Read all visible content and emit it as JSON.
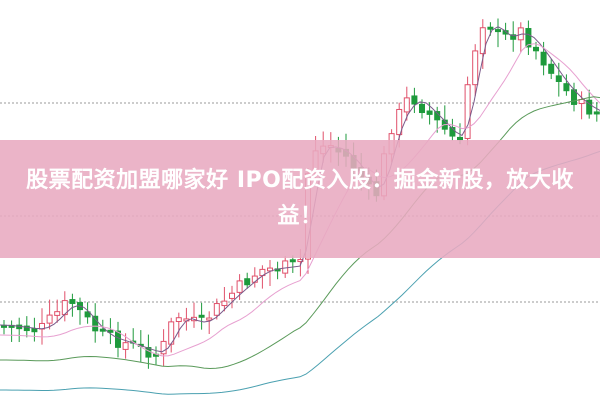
{
  "article": {
    "title": "股票配资加盟哪家好 IPO配资入股：掘金新股，放大收益！"
  },
  "colors": {
    "up_candle": "#e0506a",
    "down_candle": "#1e9a3c",
    "banner": "#e8aac0",
    "ma_lines": [
      "#7a5a8a",
      "#e7a0d0",
      "#5a9a5a",
      "#4aa0b0"
    ]
  }
}
